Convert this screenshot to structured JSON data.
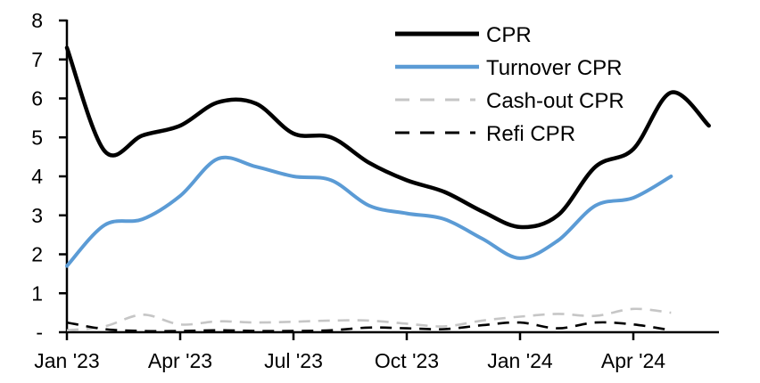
{
  "chart_data": {
    "type": "line",
    "title": "",
    "xlabel": "",
    "ylabel": "",
    "ylim": [
      0,
      8
    ],
    "grid": false,
    "legend_position": "top-right-inside",
    "y_tick_labels": [
      "-",
      "1",
      "2",
      "3",
      "4",
      "5",
      "6",
      "7",
      "8"
    ],
    "x_tick_labels": [
      "Jan '23",
      "Apr '23",
      "Jul '23",
      "Oct '23",
      "Jan '24",
      "Apr '24"
    ],
    "categories": [
      "Jan '23",
      "Feb '23",
      "Mar '23",
      "Apr '23",
      "May '23",
      "Jun '23",
      "Jul '23",
      "Aug '23",
      "Sep '23",
      "Oct '23",
      "Nov '23",
      "Dec '23",
      "Jan '24",
      "Feb '24",
      "Mar '24",
      "Apr '24",
      "May '24",
      "Jun '24"
    ],
    "series": [
      {
        "name": "CPR",
        "color": "#000000",
        "style": "solid",
        "stroke_width": 4.5,
        "values": [
          7.3,
          4.65,
          5.05,
          5.3,
          5.9,
          5.87,
          5.1,
          5.0,
          4.35,
          3.9,
          3.6,
          3.1,
          2.7,
          3.0,
          4.25,
          4.7,
          6.15,
          5.3
        ]
      },
      {
        "name": "Turnover CPR",
        "color": "#5B9BD5",
        "style": "solid",
        "stroke_width": 4,
        "values": [
          1.7,
          2.75,
          2.9,
          3.5,
          4.45,
          4.25,
          4.0,
          3.9,
          3.25,
          3.05,
          2.9,
          2.4,
          1.9,
          2.35,
          3.25,
          3.45,
          4.0
        ]
      },
      {
        "name": "Cash-out CPR",
        "color": "#C6C6C6",
        "style": "dashed",
        "stroke_width": 2.6,
        "values": [
          0.05,
          0.15,
          0.45,
          0.2,
          0.28,
          0.25,
          0.27,
          0.3,
          0.3,
          0.22,
          0.15,
          0.3,
          0.4,
          0.47,
          0.42,
          0.6,
          0.5
        ]
      },
      {
        "name": "Refi CPR",
        "color": "#000000",
        "style": "dashed",
        "stroke_width": 2.6,
        "values": [
          0.25,
          0.08,
          0.03,
          0.03,
          0.05,
          0.03,
          0.03,
          0.05,
          0.12,
          0.1,
          0.08,
          0.18,
          0.25,
          0.1,
          0.25,
          0.2,
          0.05
        ]
      }
    ]
  }
}
